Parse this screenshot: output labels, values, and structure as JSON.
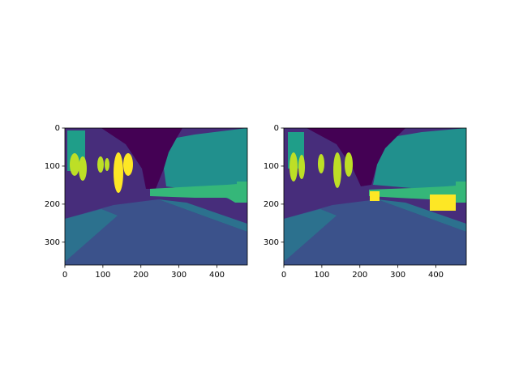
{
  "chart_data": [
    {
      "type": "image",
      "xlim": [
        0,
        480
      ],
      "ylim": [
        360,
        0
      ],
      "xticks": [
        0,
        100,
        200,
        300,
        400
      ],
      "yticks": [
        0,
        100,
        200,
        300
      ]
    },
    {
      "type": "image",
      "xlim": [
        0,
        480
      ],
      "ylim": [
        360,
        0
      ],
      "xticks": [
        0,
        100,
        200,
        300,
        400
      ],
      "yticks": [
        0,
        100,
        200,
        300
      ]
    }
  ]
}
